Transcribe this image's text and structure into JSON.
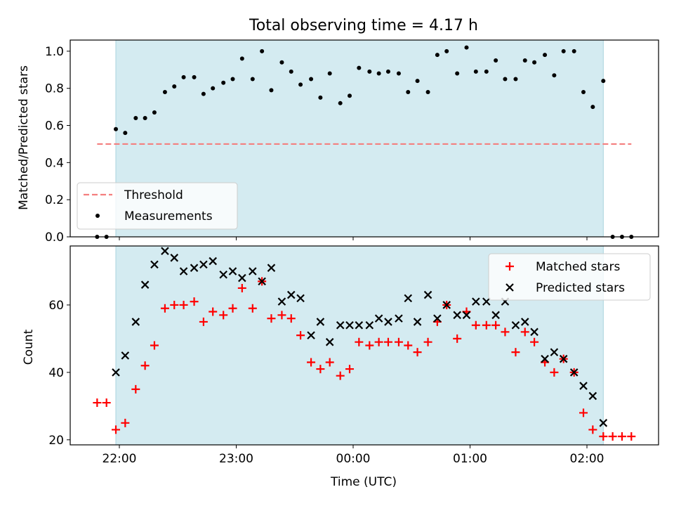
{
  "figure": {
    "title": "Total observing time = 4.17 h",
    "xlabel": "Time (UTC)",
    "x_ticks": [
      {
        "t": 0.0,
        "label": "22:00"
      },
      {
        "t": 1.0,
        "label": "23:00"
      },
      {
        "t": 2.0,
        "label": "00:00"
      },
      {
        "t": 3.0,
        "label": "01:00"
      },
      {
        "t": 4.0,
        "label": "02:00"
      }
    ],
    "observing_window": {
      "start": -0.03,
      "end": 4.14
    }
  },
  "colors": {
    "window": "#d4ebf1",
    "window_edge": "#a9d3de",
    "threshold": "#f47f7f",
    "measurement": "#000000",
    "matched": "#ff0000",
    "predicted": "#000000"
  },
  "chart_data": [
    {
      "type": "scatter",
      "ylabel": "Matched/Predicted stars",
      "ylim": [
        0.0,
        1.06
      ],
      "y_ticks": [
        "0.0",
        "0.2",
        "0.4",
        "0.6",
        "0.8",
        "1.0"
      ],
      "legend_position": "lower-left",
      "threshold": {
        "name": "Threshold",
        "y": 0.5,
        "x_range": [
          -0.19,
          4.38
        ]
      },
      "series": [
        {
          "name": "Measurements",
          "x": [
            -0.19,
            -0.11,
            -0.03,
            0.05,
            0.14,
            0.22,
            0.3,
            0.39,
            0.47,
            0.55,
            0.64,
            0.72,
            0.8,
            0.89,
            0.97,
            1.05,
            1.14,
            1.22,
            1.3,
            1.39,
            1.47,
            1.55,
            1.64,
            1.72,
            1.8,
            1.89,
            1.97,
            2.05,
            2.14,
            2.22,
            2.3,
            2.39,
            2.47,
            2.55,
            2.64,
            2.72,
            2.8,
            2.89,
            2.97,
            3.05,
            3.14,
            3.22,
            3.3,
            3.39,
            3.47,
            3.55,
            3.64,
            3.72,
            3.8,
            3.89,
            3.97,
            4.05,
            4.14,
            4.22,
            4.3,
            4.38
          ],
          "y": [
            0.0,
            0.0,
            0.58,
            0.56,
            0.64,
            0.64,
            0.67,
            0.78,
            0.81,
            0.86,
            0.86,
            0.77,
            0.8,
            0.83,
            0.85,
            0.96,
            0.85,
            1.0,
            0.79,
            0.94,
            0.89,
            0.82,
            0.85,
            0.75,
            0.88,
            0.72,
            0.76,
            0.91,
            0.89,
            0.88,
            0.89,
            0.88,
            0.78,
            0.84,
            0.78,
            0.98,
            1.0,
            0.88,
            1.02,
            0.89,
            0.89,
            0.95,
            0.85,
            0.85,
            0.95,
            0.94,
            0.98,
            0.87,
            1.0,
            1.0,
            0.78,
            0.7,
            0.84,
            0.0,
            0.0,
            0.0
          ]
        }
      ]
    },
    {
      "type": "scatter",
      "ylabel": "Count",
      "ylim": [
        18.5,
        77.5
      ],
      "y_ticks": [
        "20",
        "40",
        "60"
      ],
      "legend_position": "upper-right",
      "series": [
        {
          "name": "Matched stars",
          "marker": "plus",
          "x": [
            -0.19,
            -0.11,
            -0.03,
            0.05,
            0.14,
            0.22,
            0.3,
            0.39,
            0.47,
            0.55,
            0.64,
            0.72,
            0.8,
            0.89,
            0.97,
            1.05,
            1.14,
            1.22,
            1.3,
            1.39,
            1.47,
            1.55,
            1.64,
            1.72,
            1.8,
            1.89,
            1.97,
            2.05,
            2.14,
            2.22,
            2.3,
            2.39,
            2.47,
            2.55,
            2.64,
            2.72,
            2.8,
            2.89,
            2.97,
            3.05,
            3.14,
            3.22,
            3.3,
            3.39,
            3.47,
            3.55,
            3.64,
            3.72,
            3.8,
            3.89,
            3.97,
            4.05,
            4.14,
            4.22,
            4.3,
            4.38
          ],
          "y": [
            31,
            31,
            23,
            25,
            35,
            42,
            48,
            59,
            60,
            60,
            61,
            55,
            58,
            57,
            59,
            65,
            59,
            67,
            56,
            57,
            56,
            51,
            43,
            41,
            43,
            39,
            41,
            49,
            48,
            49,
            49,
            49,
            48,
            46,
            49,
            55,
            60,
            50,
            58,
            54,
            54,
            54,
            52,
            46,
            52,
            49,
            43,
            40,
            44,
            40,
            28,
            23,
            21,
            21,
            21,
            21
          ]
        },
        {
          "name": "Predicted stars",
          "marker": "x",
          "x": [
            -0.03,
            0.05,
            0.14,
            0.22,
            0.3,
            0.39,
            0.47,
            0.55,
            0.64,
            0.72,
            0.8,
            0.89,
            0.97,
            1.05,
            1.14,
            1.22,
            1.3,
            1.39,
            1.47,
            1.55,
            1.64,
            1.72,
            1.8,
            1.89,
            1.97,
            2.05,
            2.14,
            2.22,
            2.3,
            2.39,
            2.47,
            2.55,
            2.64,
            2.72,
            2.8,
            2.89,
            2.97,
            3.05,
            3.14,
            3.22,
            3.3,
            3.39,
            3.47,
            3.55,
            3.64,
            3.72,
            3.8,
            3.89,
            3.97,
            4.05,
            4.14
          ],
          "y": [
            40,
            45,
            55,
            66,
            72,
            76,
            74,
            70,
            71,
            72,
            73,
            69,
            70,
            68,
            70,
            67,
            71,
            61,
            63,
            62,
            51,
            55,
            49,
            54,
            54,
            54,
            54,
            56,
            55,
            56,
            62,
            55,
            63,
            56,
            60,
            57,
            57,
            61,
            61,
            57,
            61,
            54,
            55,
            52,
            44,
            46,
            44,
            40,
            36,
            33,
            25
          ]
        }
      ]
    }
  ]
}
